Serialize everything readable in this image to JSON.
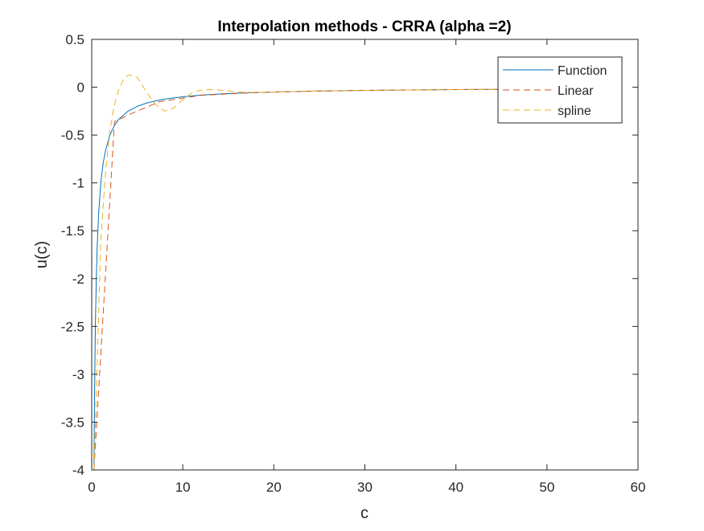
{
  "chart_data": {
    "type": "line",
    "title": "Interpolation methods - CRRA (alpha =2)",
    "xlabel": "c",
    "ylabel": "u(c)",
    "xlim": [
      0,
      60
    ],
    "ylim": [
      -4,
      0.5
    ],
    "xticks": [
      0,
      10,
      20,
      30,
      40,
      50,
      60
    ],
    "xtick_labels": [
      "0",
      "10",
      "20",
      "30",
      "40",
      "50",
      "60"
    ],
    "yticks": [
      -4,
      -3.5,
      -3,
      -2.5,
      -2,
      -1.5,
      -1,
      -0.5,
      0,
      0.5
    ],
    "ytick_labels": [
      "-4",
      "-3.5",
      "-3",
      "-2.5",
      "-2",
      "-1.5",
      "-1",
      "-0.5",
      "0",
      "0.5"
    ],
    "grid": false,
    "legend_position": "top-right",
    "series": [
      {
        "name": "Function",
        "color": "#0072BD",
        "style": "solid",
        "x": [
          0.25,
          0.3,
          0.4,
          0.5,
          0.6,
          0.75,
          1,
          1.25,
          1.5,
          2,
          2.5,
          3,
          4,
          5,
          6,
          7,
          8,
          10,
          12,
          14,
          16,
          18,
          20,
          25,
          30,
          35,
          40,
          45,
          50
        ],
        "y": [
          -4,
          -3.333,
          -2.5,
          -2,
          -1.667,
          -1.333,
          -1,
          -0.8,
          -0.667,
          -0.5,
          -0.4,
          -0.333,
          -0.25,
          -0.2,
          -0.167,
          -0.143,
          -0.125,
          -0.1,
          -0.083,
          -0.071,
          -0.0625,
          -0.056,
          -0.05,
          -0.04,
          -0.033,
          -0.029,
          -0.025,
          -0.022,
          -0.02
        ]
      },
      {
        "name": "Linear",
        "color": "#D95319",
        "style": "dashed",
        "x": [
          0.25,
          2.5,
          4.5,
          7.5,
          12,
          17,
          22,
          30,
          40,
          50
        ],
        "y": [
          -4,
          -0.36,
          -0.27,
          -0.15,
          -0.085,
          -0.06,
          -0.046,
          -0.033,
          -0.025,
          -0.02
        ]
      },
      {
        "name": "spline",
        "color": "#EDB120",
        "style": "dashed",
        "x": [
          0.25,
          0.5,
          1,
          1.5,
          2,
          2.5,
          3,
          3.5,
          4,
          4.5,
          5,
          5.5,
          6,
          7,
          8,
          9,
          10,
          11,
          12,
          13,
          14,
          15,
          16,
          18,
          20,
          25,
          30,
          40,
          50
        ],
        "y": [
          -4,
          -3.2,
          -1.6,
          -0.9,
          -0.45,
          -0.18,
          -0.02,
          0.08,
          0.125,
          0.13,
          0.1,
          0.03,
          -0.05,
          -0.18,
          -0.25,
          -0.22,
          -0.13,
          -0.06,
          -0.03,
          -0.025,
          -0.03,
          -0.04,
          -0.05,
          -0.055,
          -0.05,
          -0.04,
          -0.033,
          -0.025,
          -0.02
        ]
      }
    ]
  }
}
